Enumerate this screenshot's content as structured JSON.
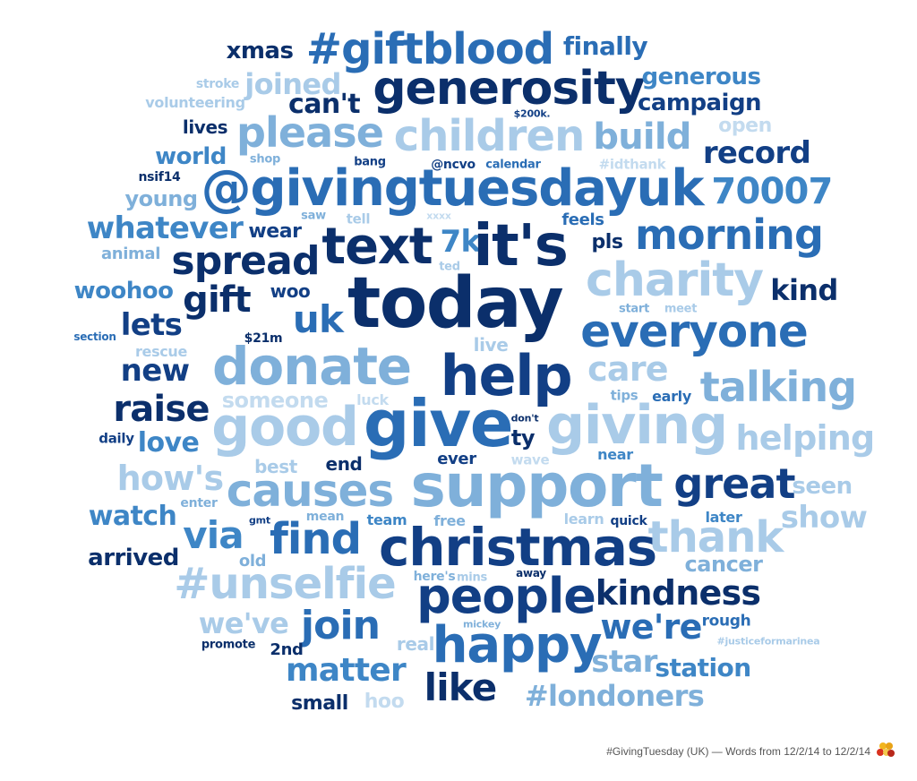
{
  "caption": "#GivingTuesday (UK) — Words from 12/2/14 to 12/2/14",
  "palette": {
    "navy": "#0b2f6b",
    "dark": "#123f85",
    "mid": "#2a6db5",
    "blue": "#3e86c6",
    "light": "#7fb0da",
    "pale": "#a9cbe8",
    "faint": "#c3dbef"
  },
  "words": [
    "xmas",
    "#giftblood",
    "finally",
    "stroke",
    "joined",
    "generosity",
    "generous",
    "volunteering",
    "can't",
    "campaign",
    "lives",
    "please",
    "children",
    "build",
    "$200k.",
    "open",
    "world",
    "shop",
    "bang",
    "@ncvo",
    "calendar",
    "#idthank",
    "record",
    "nsif14",
    "@givingtuesdayuk",
    "70007",
    "young",
    "saw",
    "tell",
    "xxxx",
    "feels",
    "whatever",
    "wear",
    "text",
    "7k",
    "it's",
    "morning",
    "animal",
    "spread",
    "pls",
    "ted",
    "charity",
    "woohoo",
    "gift",
    "woo",
    "today",
    "kind",
    "uk",
    "lets",
    "start",
    "meet",
    "section",
    "$21m",
    "everyone",
    "rescue",
    "live",
    "new",
    "donate",
    "help",
    "care",
    "talking",
    "someone",
    "luck",
    "tips",
    "early",
    "raise",
    "good",
    "give",
    "don't",
    "giving",
    "daily",
    "love",
    "ty",
    "helping",
    "best",
    "end",
    "ever",
    "wave",
    "near",
    "how's",
    "causes",
    "support",
    "great",
    "seen",
    "enter",
    "watch",
    "gmt",
    "mean",
    "team",
    "free",
    "learn",
    "quick",
    "later",
    "show",
    "via",
    "find",
    "christmas",
    "thank",
    "arrived",
    "old",
    "cancer",
    "#unselfie",
    "here's",
    "mins",
    "away",
    "people",
    "kindness",
    "we've",
    "join",
    "mickey",
    "we're",
    "rough",
    "promote",
    "2nd",
    "real",
    "happy",
    "#justiceformarinea",
    "matter",
    "star",
    "station",
    "like",
    "small",
    "hoo",
    "#londoners"
  ]
}
